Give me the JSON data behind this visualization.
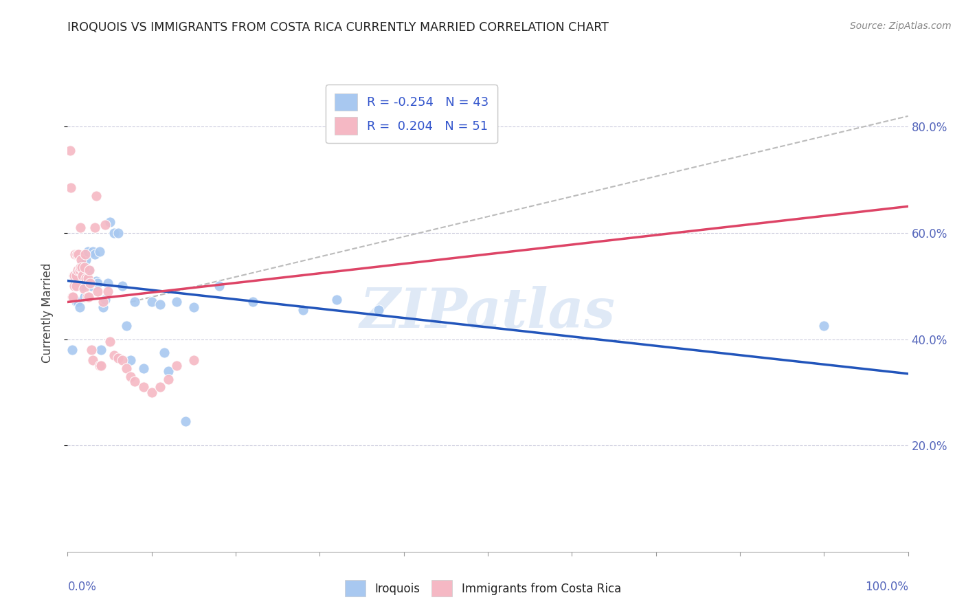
{
  "title": "IROQUOIS VS IMMIGRANTS FROM COSTA RICA CURRENTLY MARRIED CORRELATION CHART",
  "source": "Source: ZipAtlas.com",
  "ylabel": "Currently Married",
  "right_yticks": [
    "20.0%",
    "40.0%",
    "60.0%",
    "80.0%"
  ],
  "right_ytick_vals": [
    0.2,
    0.4,
    0.6,
    0.8
  ],
  "legend_blue_label": "R = -0.254   N = 43",
  "legend_pink_label": "R =  0.204   N = 51",
  "blue_color": "#a8c8f0",
  "pink_color": "#f5b8c4",
  "blue_line_color": "#2255bb",
  "pink_line_color": "#dd4466",
  "dashed_line_color": "#bbbbbb",
  "watermark": "ZIPatlas",
  "iroquois_label": "Iroquois",
  "cr_label": "Immigrants from Costa Rica",
  "blue_points_x": [
    0.005,
    0.01,
    0.012,
    0.014,
    0.016,
    0.017,
    0.018,
    0.02,
    0.022,
    0.024,
    0.025,
    0.027,
    0.028,
    0.03,
    0.032,
    0.034,
    0.036,
    0.038,
    0.04,
    0.042,
    0.045,
    0.048,
    0.05,
    0.055,
    0.06,
    0.065,
    0.07,
    0.075,
    0.08,
    0.09,
    0.1,
    0.11,
    0.115,
    0.12,
    0.13,
    0.14,
    0.15,
    0.18,
    0.22,
    0.28,
    0.32,
    0.37,
    0.9
  ],
  "blue_points_y": [
    0.38,
    0.47,
    0.47,
    0.46,
    0.52,
    0.54,
    0.5,
    0.48,
    0.55,
    0.565,
    0.53,
    0.505,
    0.5,
    0.565,
    0.56,
    0.51,
    0.505,
    0.565,
    0.38,
    0.46,
    0.475,
    0.505,
    0.62,
    0.6,
    0.6,
    0.5,
    0.425,
    0.36,
    0.47,
    0.345,
    0.47,
    0.465,
    0.375,
    0.34,
    0.47,
    0.245,
    0.46,
    0.5,
    0.47,
    0.455,
    0.475,
    0.455,
    0.425
  ],
  "pink_points_x": [
    0.003,
    0.004,
    0.005,
    0.006,
    0.007,
    0.008,
    0.008,
    0.009,
    0.01,
    0.01,
    0.011,
    0.012,
    0.013,
    0.014,
    0.015,
    0.015,
    0.016,
    0.017,
    0.018,
    0.019,
    0.02,
    0.021,
    0.022,
    0.023,
    0.024,
    0.025,
    0.026,
    0.027,
    0.028,
    0.03,
    0.032,
    0.034,
    0.036,
    0.038,
    0.04,
    0.042,
    0.045,
    0.048,
    0.05,
    0.055,
    0.06,
    0.065,
    0.07,
    0.075,
    0.08,
    0.09,
    0.1,
    0.11,
    0.12,
    0.13,
    0.15
  ],
  "pink_points_y": [
    0.755,
    0.685,
    0.48,
    0.48,
    0.52,
    0.5,
    0.52,
    0.56,
    0.52,
    0.5,
    0.56,
    0.53,
    0.56,
    0.53,
    0.535,
    0.61,
    0.55,
    0.535,
    0.52,
    0.495,
    0.535,
    0.56,
    0.515,
    0.48,
    0.515,
    0.48,
    0.53,
    0.505,
    0.38,
    0.36,
    0.61,
    0.67,
    0.49,
    0.35,
    0.35,
    0.47,
    0.615,
    0.49,
    0.395,
    0.37,
    0.365,
    0.36,
    0.345,
    0.33,
    0.32,
    0.31,
    0.3,
    0.31,
    0.325,
    0.35,
    0.36
  ],
  "xlim": [
    0.0,
    1.0
  ],
  "ylim": [
    0.0,
    0.9
  ],
  "blue_trend_x": [
    0.0,
    1.0
  ],
  "blue_trend_y": [
    0.51,
    0.335
  ],
  "pink_trend_x": [
    0.0,
    1.0
  ],
  "pink_trend_y": [
    0.47,
    0.65
  ],
  "dashed_trend_x": [
    0.075,
    1.0
  ],
  "dashed_trend_y": [
    0.47,
    0.82
  ]
}
